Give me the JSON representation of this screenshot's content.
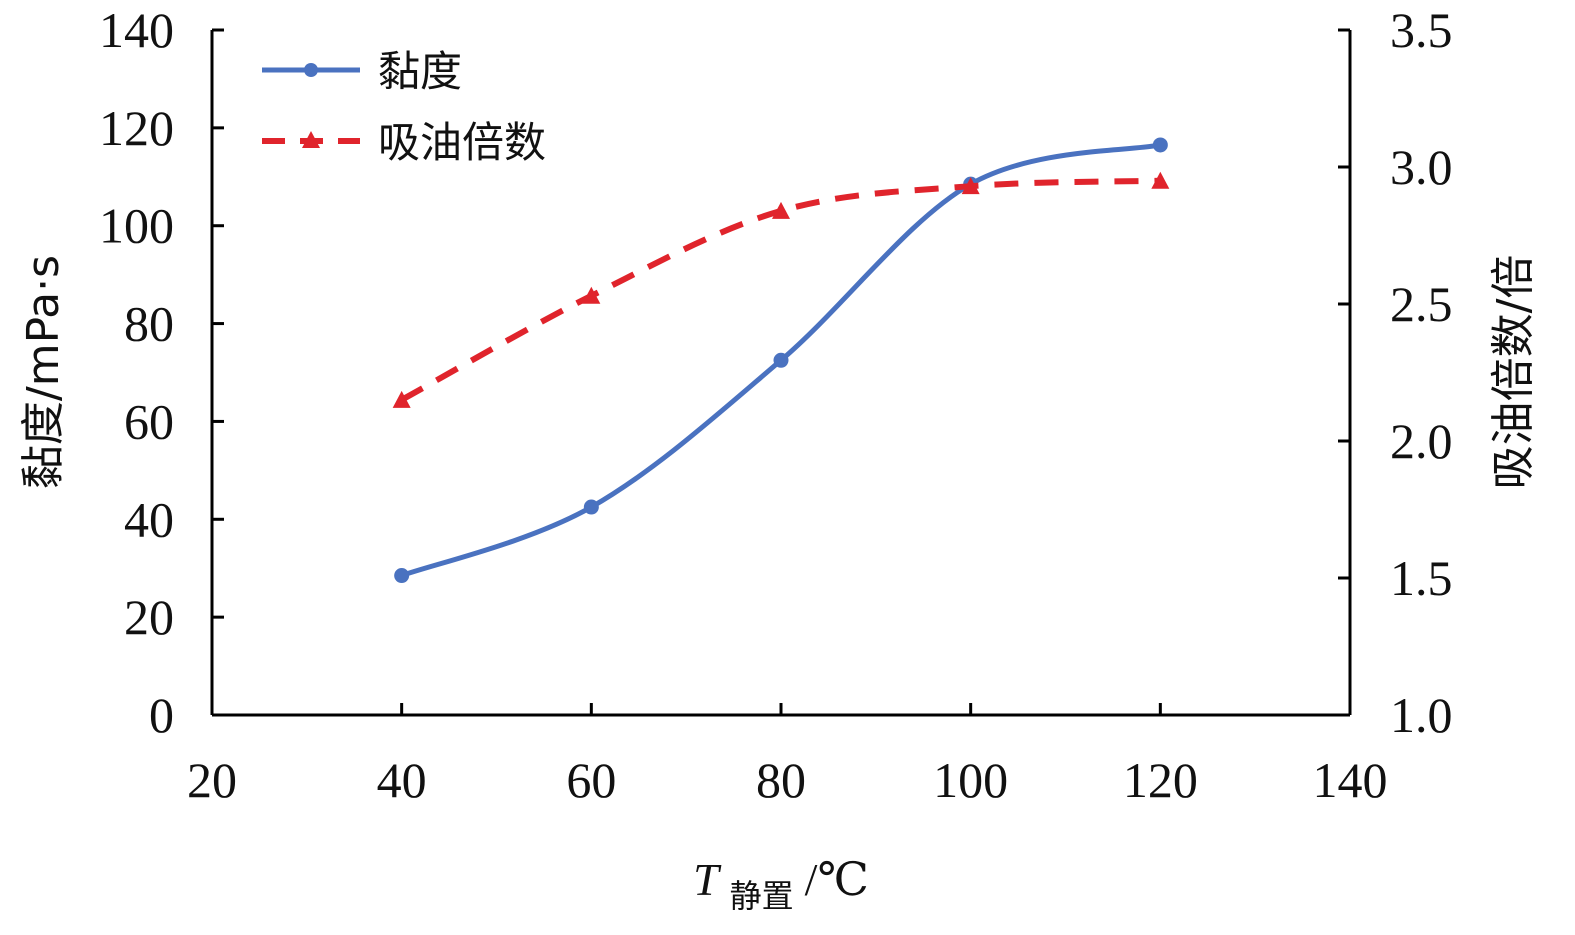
{
  "chart_data": {
    "type": "line",
    "x": [
      40,
      60,
      80,
      100,
      120
    ],
    "xlim": [
      20,
      140
    ],
    "xticks": [
      "20",
      "40",
      "60",
      "80",
      "100",
      "120",
      "140"
    ],
    "xlabel": {
      "main": "T",
      "subscript": "静置",
      "unit": "/℃"
    },
    "ylabel_left": "黏度/mPa·s",
    "ylim_left": [
      0,
      140
    ],
    "yticks_left": [
      "0",
      "20",
      "40",
      "60",
      "80",
      "100",
      "120",
      "140"
    ],
    "ylabel_right": "吸油倍数/倍",
    "ylim_right": [
      1.0,
      3.5
    ],
    "yticks_right": [
      "1.0",
      "1.5",
      "2.0",
      "2.5",
      "3.0",
      "3.5"
    ],
    "legend_position": "top-left",
    "grid": false,
    "series": [
      {
        "name": "黏度",
        "axis": "left",
        "values": [
          28.5,
          42.5,
          72.5,
          108.5,
          116.5
        ],
        "color": "#4a72c0",
        "line_style": "solid",
        "marker": "circle",
        "smooth": true
      },
      {
        "name": "吸油倍数",
        "axis": "right",
        "values": [
          2.15,
          2.53,
          2.84,
          2.93,
          2.95
        ],
        "color": "#e0242c",
        "line_style": "dashed",
        "marker": "triangle",
        "smooth": true
      }
    ]
  }
}
